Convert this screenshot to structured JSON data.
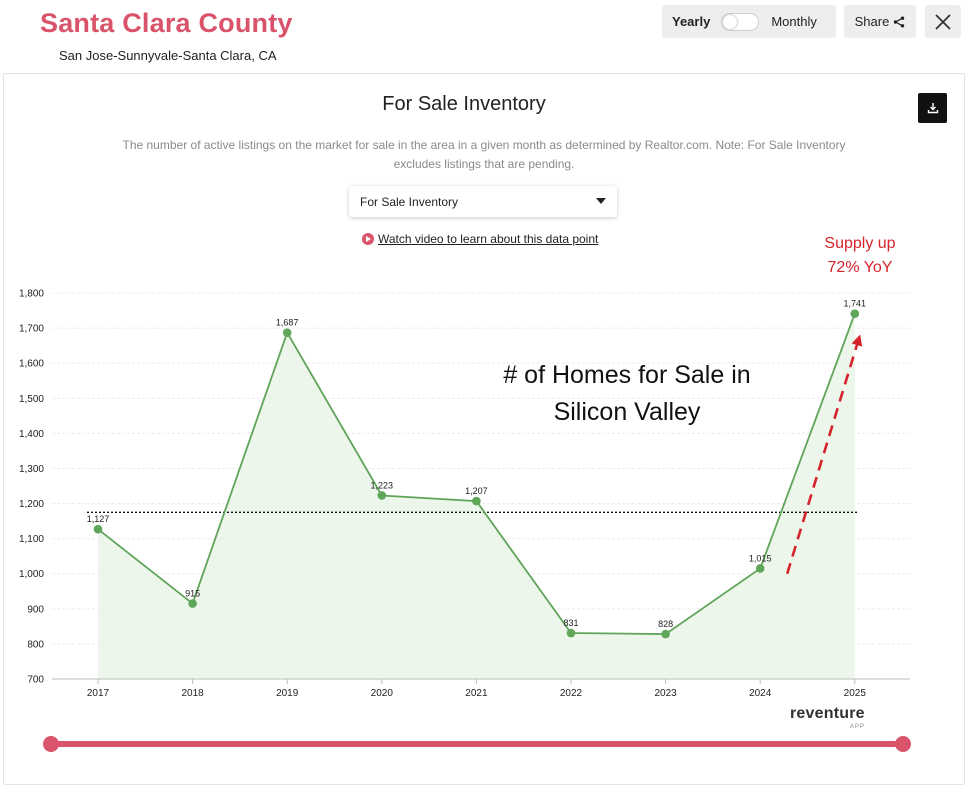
{
  "header": {
    "title": "Santa Clara County",
    "subtitle": "San Jose-Sunnyvale-Santa Clara, CA"
  },
  "toolbar": {
    "yearly_label": "Yearly",
    "monthly_label": "Monthly",
    "share_label": "Share",
    "icons": {
      "share": "share-icon",
      "close": "close-icon",
      "download": "download-icon"
    }
  },
  "chart_header": {
    "title": "For Sale Inventory",
    "description": "The number of active listings on the market for sale in the area in a given month as determined by Realtor.com. Note: For Sale Inventory excludes listings that are pending.",
    "selected_metric": "For Sale Inventory",
    "video_link": "Watch video to learn about this data point"
  },
  "annotations": {
    "supply_note": "Supply up 72% YoY",
    "homes_note": "# of Homes for Sale in Silicon Valley"
  },
  "brand": {
    "name": "reventure",
    "sub": "APP"
  },
  "colors": {
    "brand": "#d9546a",
    "line": "#5fa55a",
    "area": "#eaf4e6",
    "annotation": "#d4242a"
  },
  "chart_data": {
    "type": "line",
    "categories": [
      "2017",
      "2018",
      "2019",
      "2020",
      "2021",
      "2022",
      "2023",
      "2024",
      "2025"
    ],
    "values": [
      1127,
      915,
      1687,
      1223,
      1207,
      831,
      828,
      1015,
      1741
    ],
    "data_labels": [
      "1,127",
      "915",
      "1,687",
      "1,223",
      "1,207",
      "831",
      "828",
      "1,015",
      "1,741"
    ],
    "y_ticks": [
      "700",
      "800",
      "900",
      "1,000",
      "1,100",
      "1,200",
      "1,300",
      "1,400",
      "1,500",
      "1,600",
      "1,700",
      "1,800"
    ],
    "ylim": [
      700,
      1800
    ],
    "reference_line": 1175,
    "grid": true
  }
}
